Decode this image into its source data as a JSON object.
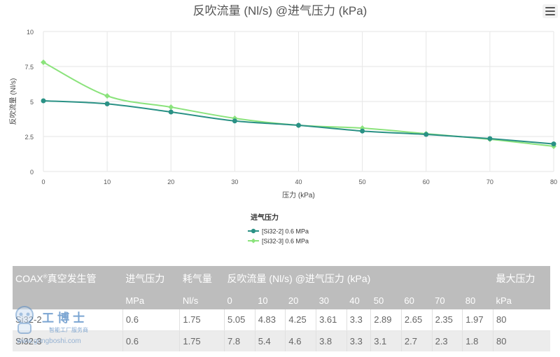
{
  "chart_data": {
    "type": "line",
    "title": "反吹流量 (Nl/s) @进气压力 (kPa)",
    "xlabel": "压力 (kPa)",
    "ylabel": "反吹流量 (Nl/s)",
    "x": [
      0,
      10,
      20,
      30,
      40,
      50,
      60,
      70,
      80
    ],
    "xlim": [
      0,
      80
    ],
    "ylim": [
      0,
      10
    ],
    "xticks": [
      "0",
      "10",
      "20",
      "30",
      "40",
      "50",
      "60",
      "70",
      "80"
    ],
    "yticks": [
      "0",
      "2.5",
      "5",
      "7.5",
      "10"
    ],
    "legend_title": "进气压力",
    "legend_position": "bottom-center",
    "series": [
      {
        "name": "[Si32-2] 0.6 MPa",
        "color": "#2a9185",
        "values": [
          5.05,
          4.83,
          4.25,
          3.61,
          3.3,
          2.89,
          2.65,
          2.35,
          1.97
        ]
      },
      {
        "name": "[Si32-3] 0.6 MPa",
        "color": "#8be37c",
        "values": [
          7.8,
          5.4,
          4.6,
          3.8,
          3.3,
          3.1,
          2.7,
          2.3,
          1.8
        ]
      }
    ]
  },
  "table": {
    "header1": {
      "model": "COAX",
      "model_reg": "®",
      "model_suffix": "真空发生管",
      "inlet": "进气压力",
      "consumption": "耗气量",
      "flow": "反吹流量 (Nl/s) @进气压力 (kPa)",
      "max": "最大压力"
    },
    "header2": {
      "inlet_unit": "MPa",
      "consumption_unit": "Nl/s",
      "pressures": [
        "0",
        "10",
        "20",
        "30",
        "40",
        "50",
        "60",
        "70",
        "80"
      ],
      "max_unit": "kPa"
    },
    "rows": [
      {
        "model": "Si32-2",
        "inlet": "0.6",
        "consumption": "1.75",
        "flows": [
          "5.05",
          "4.83",
          "4.25",
          "3.61",
          "3.3",
          "2.89",
          "2.65",
          "2.35",
          "1.97"
        ],
        "max": "80"
      },
      {
        "model": "Si32-3",
        "inlet": "0.6",
        "consumption": "1.75",
        "flows": [
          "7.8",
          "5.4",
          "4.6",
          "3.8",
          "3.3",
          "3.1",
          "2.7",
          "2.3",
          "1.8"
        ],
        "max": "80"
      }
    ]
  },
  "watermark": {
    "brand": "工博士",
    "subtitle": "智能工厂服务商",
    "url": "www.gongboshi.com"
  }
}
